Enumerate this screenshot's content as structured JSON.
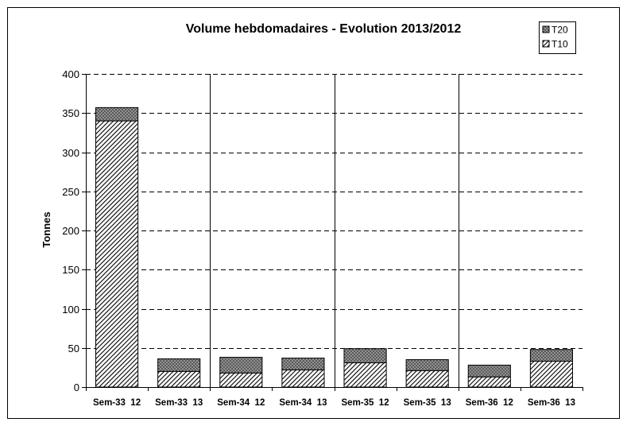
{
  "chart_data": {
    "type": "bar",
    "stacked": true,
    "title": "Volume hebdomadaires  - Evolution 2013/2012",
    "xlabel": "",
    "ylabel": "Tonnes",
    "ylim": [
      0,
      400
    ],
    "yticks": [
      0,
      50,
      100,
      150,
      200,
      250,
      300,
      350,
      400
    ],
    "grid": "horizontal dashed",
    "legend_position": "top-right",
    "categories": [
      "Sem-33  12",
      "Sem-33  13",
      "Sem-34  12",
      "Sem-34  13",
      "Sem-35  12",
      "Sem-35  13",
      "Sem-36  12",
      "Sem-36  13"
    ],
    "series": [
      {
        "name": "T10",
        "values": [
          340,
          20,
          18,
          22,
          31,
          21,
          13,
          33
        ],
        "pattern": "diagonal-dense"
      },
      {
        "name": "T20",
        "values": [
          17,
          16,
          20,
          15,
          18,
          14,
          15,
          15
        ],
        "pattern": "crosshatch-grey"
      }
    ]
  }
}
